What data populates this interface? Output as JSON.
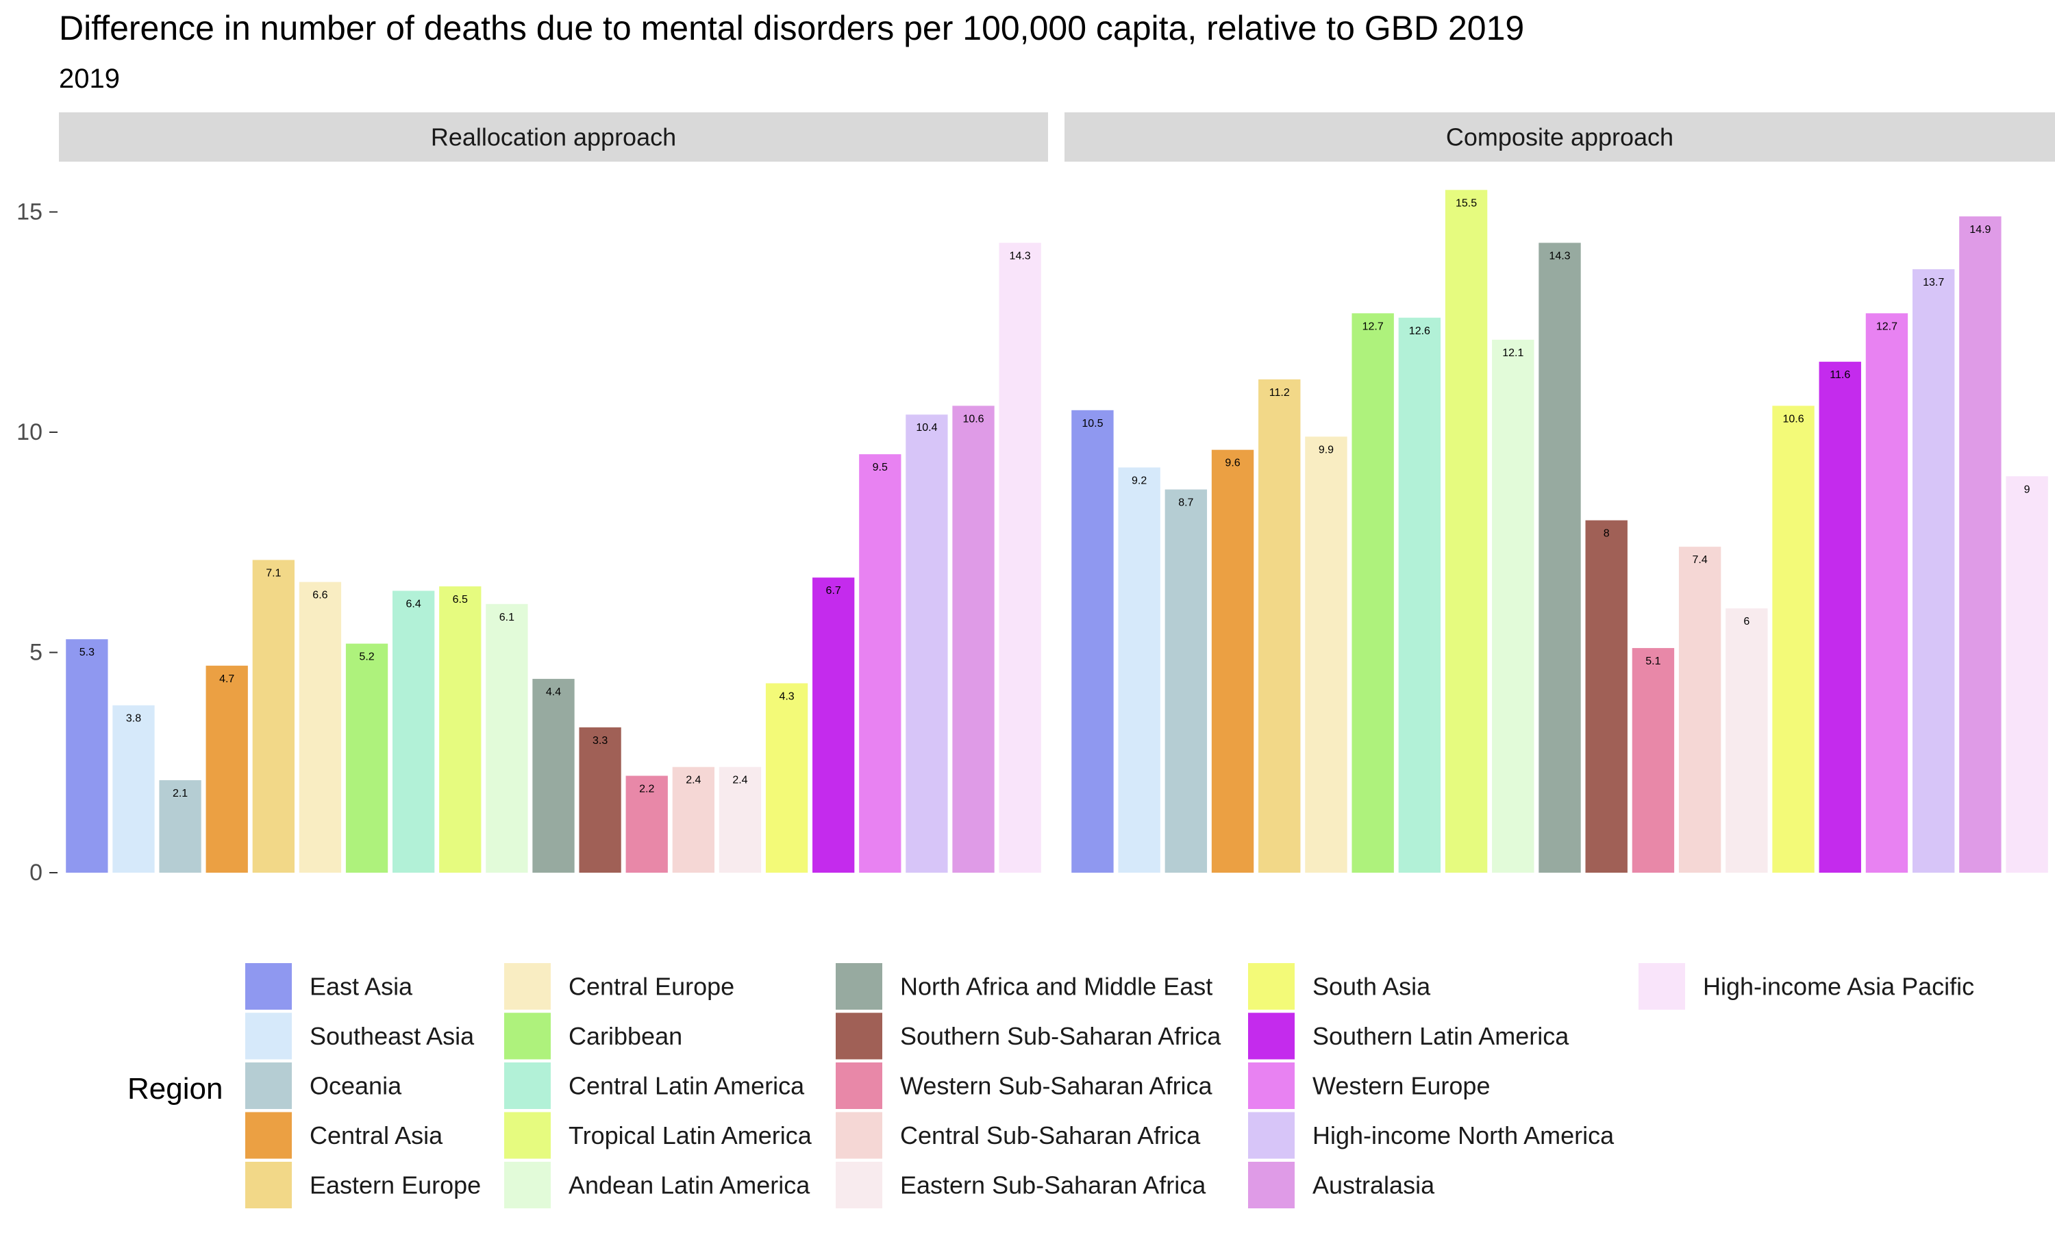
{
  "chart_data": {
    "type": "bar",
    "title": "Difference in number of deaths due to mental disorders per 100,000 capita, relative to GBD 2019",
    "subtitle": "2019",
    "xlabel": "",
    "ylabel": "",
    "ylim": [
      0,
      15.8
    ],
    "yticks": [
      0,
      5,
      10,
      15
    ],
    "grid": false,
    "legend_title": "Region",
    "legend_position": "bottom",
    "categories": [
      "East Asia",
      "Southeast Asia",
      "Oceania",
      "Central Asia",
      "Eastern Europe",
      "Central Europe",
      "Caribbean",
      "Central Latin America",
      "Tropical Latin America",
      "Andean Latin America",
      "North Africa and Middle East",
      "Southern Sub-Saharan Africa",
      "Western Sub-Saharan Africa",
      "Central Sub-Saharan Africa",
      "Eastern Sub-Saharan Africa",
      "South Asia",
      "Southern Latin America",
      "Western Europe",
      "High-income North America",
      "Australasia",
      "High-income Asia Pacific"
    ],
    "colors": [
      "#8f98f0",
      "#d6e9fa",
      "#b5cdd3",
      "#eba043",
      "#f2d888",
      "#f9edc2",
      "#aef27c",
      "#b2f1d7",
      "#e6fb7f",
      "#e2fbd9",
      "#97aaa0",
      "#a06056",
      "#e888a8",
      "#f5d7d5",
      "#f8ebee",
      "#f3fa78",
      "#c42bed",
      "#e882f2",
      "#d7c5f8",
      "#df9be7",
      "#f9e4fa"
    ],
    "panels": [
      {
        "name": "Reallocation approach",
        "values": [
          5.3,
          3.8,
          2.1,
          4.7,
          7.1,
          6.6,
          5.2,
          6.4,
          6.5,
          6.1,
          4.4,
          3.3,
          2.2,
          2.4,
          2.4,
          4.3,
          6.7,
          9.5,
          10.4,
          10.6,
          14.3
        ]
      },
      {
        "name": "Composite approach",
        "values": [
          10.5,
          9.2,
          8.7,
          9.6,
          11.2,
          9.9,
          12.7,
          12.6,
          15.5,
          12.1,
          14.3,
          8,
          5.1,
          7.4,
          6,
          10.6,
          11.6,
          12.7,
          13.7,
          14.9,
          9
        ]
      }
    ]
  }
}
